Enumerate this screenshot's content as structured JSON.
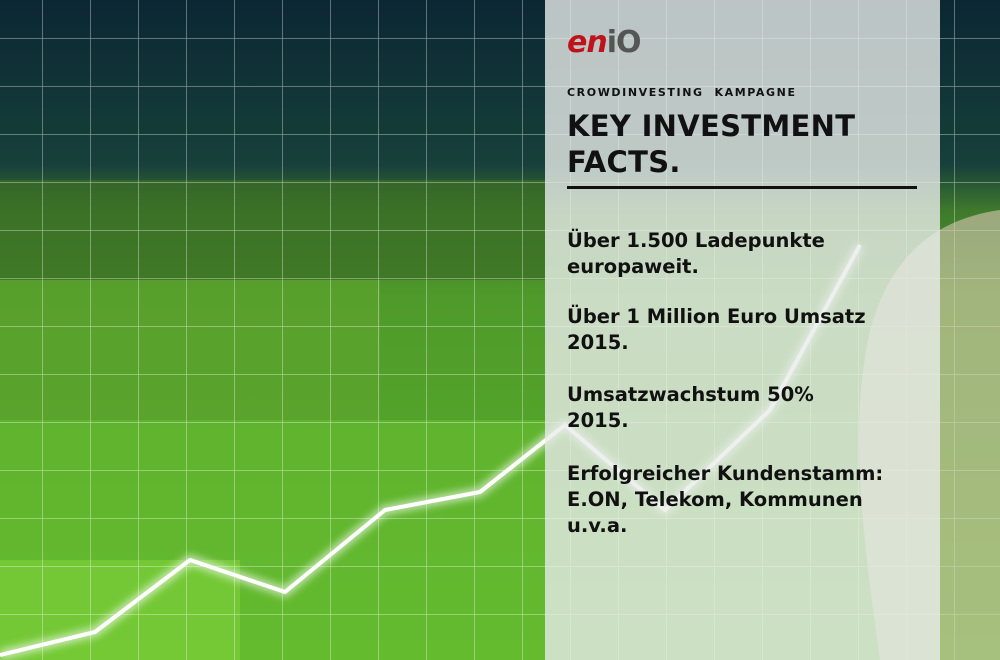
{
  "logo": {
    "part1": "en",
    "part2": "iO"
  },
  "kicker": "CROWDINVESTING  KAMPAGNE",
  "title": [
    "KEY INVESTMENT",
    "FACTS."
  ],
  "facts": [
    [
      "Über 1.500 Ladepunkte",
      "europaweit."
    ],
    [
      "Über 1 Million Euro Umsatz",
      "2015."
    ],
    [
      "Umsatzwachstum 50%",
      "2015."
    ],
    [
      "Erfolgreicher Kundenstamm:",
      "E.ON, Telekom, Kommunen",
      "u.v.a."
    ]
  ]
}
